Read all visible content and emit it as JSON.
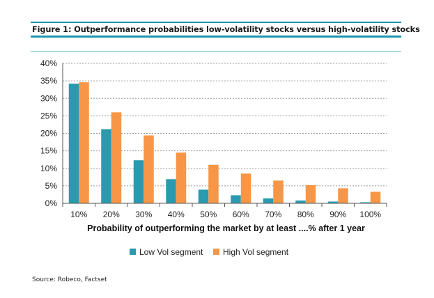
{
  "figure": {
    "title": "Figure 1: Outperformance probabilities low-volatility stocks versus high-volatility stocks",
    "source": "Source: Robeco, Factset"
  },
  "colors": {
    "low": "#2a9ab0",
    "high": "#f79646",
    "grid": "#9a9a9a",
    "accent": "#1b97ad"
  },
  "chart_data": {
    "type": "bar",
    "title": "",
    "xlabel": "Probability of outperforming the market by at least ....% after 1 year",
    "ylabel": "",
    "categories": [
      "10%",
      "20%",
      "30%",
      "40%",
      "50%",
      "60%",
      "70%",
      "80%",
      "90%",
      "100%"
    ],
    "y_ticks": [
      "0%",
      "5%",
      "10%",
      "15%",
      "20%",
      "25%",
      "30%",
      "35%",
      "40%"
    ],
    "ylim": [
      0,
      40
    ],
    "grid": "horizontal dashed",
    "legend_position": "bottom",
    "series": [
      {
        "name": "Low Vol segment",
        "color": "#2a9ab0",
        "values": [
          34.2,
          21.2,
          12.3,
          6.9,
          3.9,
          2.3,
          1.4,
          0.8,
          0.5,
          0.3
        ]
      },
      {
        "name": "High Vol segment",
        "color": "#f79646",
        "values": [
          34.6,
          26.0,
          19.4,
          14.5,
          11.0,
          8.5,
          6.5,
          5.2,
          4.3,
          3.3
        ]
      }
    ]
  }
}
